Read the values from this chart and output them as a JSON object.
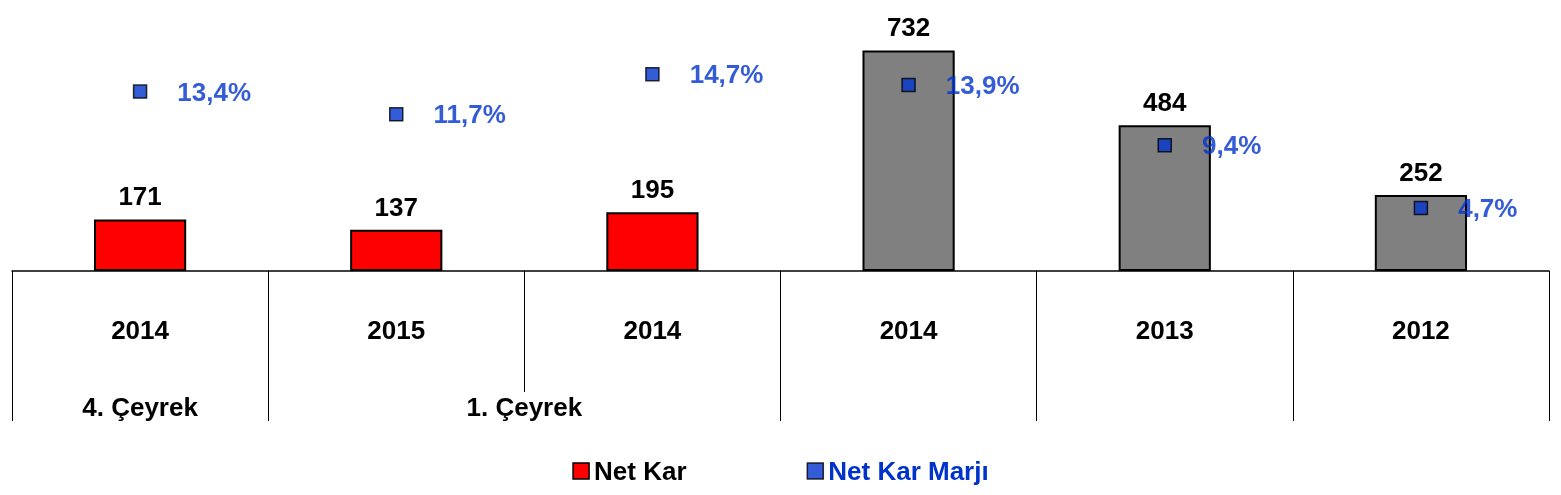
{
  "chart_data": {
    "type": "bar",
    "categories": [
      "2014",
      "2015",
      "2014",
      "2014",
      "2013",
      "2012"
    ],
    "series": [
      {
        "name": "Net Kar",
        "color": "#ff0000",
        "colors": [
          "#ff0000",
          "#ff0000",
          "#ff0000",
          "#808080",
          "#808080",
          "#808080"
        ],
        "values": [
          171,
          137,
          195,
          732,
          484,
          252
        ]
      },
      {
        "name": "Net Kar Marjı",
        "type": "scatter",
        "axis": "y2",
        "color": "#0033cc",
        "values": [
          13.4,
          11.7,
          14.7,
          13.9,
          9.4,
          4.7
        ],
        "value_labels": [
          "13,4%",
          "11,7%",
          "14,7%",
          "13,9%",
          "9,4%",
          "4,7%"
        ]
      }
    ],
    "annotations": [
      "4. Çeyrek",
      "1. Çeyrek"
    ],
    "tick_labels": "x",
    "data_labels": true,
    "marker": "square",
    "grid": false,
    "legend": "bottom"
  }
}
